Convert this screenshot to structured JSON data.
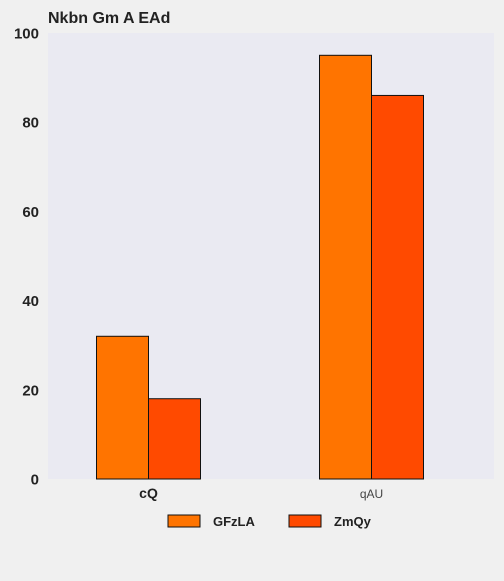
{
  "chart_data": {
    "type": "bar",
    "title": "Nkbn Gm A EAd",
    "xlabel": "",
    "ylabel": "",
    "categories": [
      "cQ",
      "qAU"
    ],
    "series": [
      {
        "name": "GFzLA",
        "values": [
          32,
          95
        ],
        "color": "#ff7400"
      },
      {
        "name": "ZmQy",
        "values": [
          18,
          86
        ],
        "color": "#ff4a00"
      }
    ],
    "ylim": [
      0,
      100
    ],
    "yticks": [
      0,
      20,
      40,
      60,
      80,
      100
    ],
    "grid": false,
    "legend_position": "bottom",
    "plot_background": "#eaeaf2",
    "page_background": "#f0f0f0"
  }
}
